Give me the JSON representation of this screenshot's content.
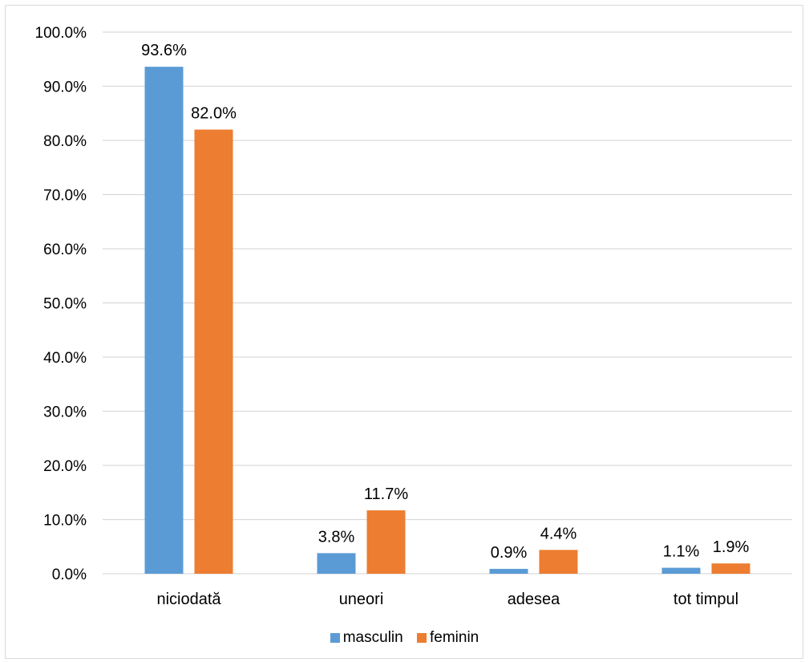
{
  "chart_data": {
    "type": "bar",
    "categories": [
      "niciodată",
      "uneori",
      "adesea",
      "tot timpul"
    ],
    "series": [
      {
        "name": "masculin",
        "values": [
          93.6,
          3.8,
          0.9,
          1.1
        ],
        "color": "#5b9bd5"
      },
      {
        "name": "feminin",
        "values": [
          82.0,
          11.7,
          4.4,
          1.9
        ],
        "color": "#ed7d31"
      }
    ],
    "data_labels": [
      [
        "93.6%",
        "3.8%",
        "0.9%",
        "1.1%"
      ],
      [
        "82.0%",
        "11.7%",
        "4.4%",
        "1.9%"
      ]
    ],
    "y_ticks": [
      "0.0%",
      "10.0%",
      "20.0%",
      "30.0%",
      "40.0%",
      "50.0%",
      "60.0%",
      "70.0%",
      "80.0%",
      "90.0%",
      "100.0%"
    ],
    "ylim": [
      0,
      100
    ],
    "grid": true,
    "legend_position": "bottom",
    "gridline_color": "#d9d9d9"
  }
}
